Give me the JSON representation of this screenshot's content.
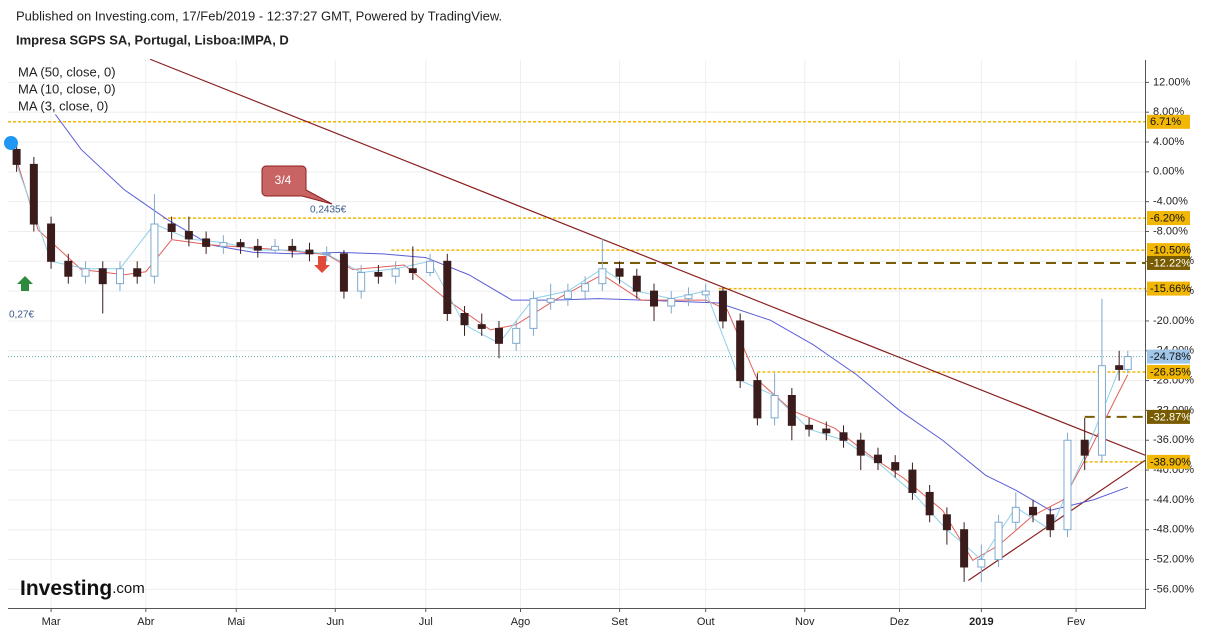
{
  "header": {
    "published": "Published on Investing.com, 17/Feb/2019 - 12:37:27 GMT, Powered by TradingView.",
    "instrument": "Impresa SGPS SA, Portugal, Lisboa:IMPA, D"
  },
  "logo": {
    "name": "Investing",
    "suffix": ".com"
  },
  "chart_data": {
    "type": "candlestick",
    "xlim": [
      -2,
      262
    ],
    "ylim": [
      -58.5,
      15
    ],
    "xticks": [
      {
        "value": 8,
        "label": "Mar"
      },
      {
        "value": 30,
        "label": "Abr"
      },
      {
        "value": 51,
        "label": "Mai"
      },
      {
        "value": 74,
        "label": "Jun"
      },
      {
        "value": 95,
        "label": "Jul"
      },
      {
        "value": 117,
        "label": "Ago"
      },
      {
        "value": 140,
        "label": "Set"
      },
      {
        "value": 160,
        "label": "Out"
      },
      {
        "value": 183,
        "label": "Nov"
      },
      {
        "value": 205,
        "label": "Dez"
      },
      {
        "value": 224,
        "label": "2019"
      },
      {
        "value": 246,
        "label": "Fev"
      }
    ],
    "yticks": [
      {
        "value": 12,
        "label": "12.00%"
      },
      {
        "value": 8,
        "label": "8.00%"
      },
      {
        "value": 4,
        "label": "4.00%"
      },
      {
        "value": 0,
        "label": "0.00%"
      },
      {
        "value": -4,
        "label": "-4.00%"
      },
      {
        "value": -8,
        "label": "-8.00%"
      },
      {
        "value": -12,
        "label": "-12.00%"
      },
      {
        "value": -16,
        "label": "-16.00%"
      },
      {
        "value": -20,
        "label": "-20.00%"
      },
      {
        "value": -24,
        "label": "-24.00%"
      },
      {
        "value": -28,
        "label": "-28.00%"
      },
      {
        "value": -32,
        "label": "-32.00%"
      },
      {
        "value": -36,
        "label": "-36.00%"
      },
      {
        "value": -40,
        "label": "-40.00%"
      },
      {
        "value": -44,
        "label": "-44.00%"
      },
      {
        "value": -48,
        "label": "-48.00%"
      },
      {
        "value": -52,
        "label": "-52.00%"
      },
      {
        "value": -56,
        "label": "-56.00%"
      }
    ],
    "grid": true,
    "up_color": "#7fa9cf",
    "down_color": "#3b1c1c",
    "candles": {
      "x": [
        0,
        4,
        8,
        12,
        16,
        20,
        24,
        28,
        32,
        36,
        40,
        44,
        48,
        52,
        56,
        60,
        64,
        68,
        72,
        76,
        80,
        84,
        88,
        92,
        96,
        100,
        104,
        108,
        112,
        116,
        120,
        124,
        128,
        132,
        136,
        140,
        144,
        148,
        152,
        156,
        160,
        164,
        168,
        172,
        176,
        180,
        184,
        188,
        192,
        196,
        200,
        204,
        208,
        212,
        216,
        220,
        224,
        228,
        232,
        236,
        240,
        244,
        248,
        252,
        256,
        258
      ],
      "open": [
        3,
        1,
        -7,
        -12,
        -14,
        -13,
        -15,
        -13,
        -14,
        -7,
        -8,
        -9,
        -10,
        -9.5,
        -10,
        -10.5,
        -10,
        -10.5,
        -11,
        -11,
        -16,
        -13.5,
        -14,
        -13,
        -13.5,
        -12,
        -19,
        -20.5,
        -21,
        -23,
        -21,
        -17.5,
        -17,
        -16,
        -15,
        -13,
        -14,
        -16,
        -18,
        -17,
        -16.5,
        -16,
        -20,
        -28,
        -33,
        -30,
        -34,
        -34.5,
        -35,
        -36,
        -38,
        -39,
        -40,
        -43,
        -46,
        -48,
        -53,
        -52,
        -47,
        -45,
        -46,
        -48,
        -36,
        -38,
        -26,
        -26.5
      ],
      "high": [
        4,
        2,
        -6,
        -11,
        -12,
        -12,
        -12,
        -12,
        -3,
        -6,
        -6,
        -8,
        -8.5,
        -9,
        -9,
        -9,
        -9,
        -9.5,
        -10,
        -10.5,
        -12.5,
        -12.5,
        -12,
        -10,
        -11,
        -11,
        -18,
        -19,
        -20,
        -20,
        -16,
        -15,
        -15,
        -14,
        -9,
        -12,
        -13,
        -15,
        -16,
        -15.5,
        -15,
        -15.5,
        -19,
        -27,
        -27,
        -29,
        -33,
        -33.5,
        -34,
        -35,
        -37,
        -38,
        -39,
        -42,
        -45,
        -47,
        -50,
        -46,
        -43,
        -44,
        -45,
        -35,
        -33,
        -17,
        -24,
        -24
      ],
      "low": [
        0,
        -8,
        -13,
        -15,
        -15,
        -19,
        -16,
        -15,
        -15,
        -9,
        -10,
        -11,
        -11,
        -11,
        -11.5,
        -11,
        -11.5,
        -12,
        -12,
        -17,
        -17,
        -15,
        -15,
        -14.5,
        -14,
        -20,
        -22,
        -22,
        -25,
        -24,
        -22,
        -18.5,
        -18,
        -17,
        -16,
        -15,
        -17,
        -20,
        -19,
        -18,
        -17.5,
        -21,
        -29,
        -34,
        -34,
        -36,
        -35.5,
        -36,
        -37,
        -40,
        -40,
        -41,
        -44,
        -47,
        -50,
        -55,
        -55,
        -53,
        -48,
        -47,
        -49,
        -49,
        -40,
        -39,
        -28,
        -27
      ],
      "close": [
        1,
        -7,
        -12,
        -14,
        -13,
        -15,
        -13,
        -14,
        -7,
        -8,
        -9,
        -10,
        -9.5,
        -10,
        -10.5,
        -10,
        -10.5,
        -11,
        -11,
        -16,
        -13.5,
        -14,
        -13,
        -13.5,
        -12,
        -19,
        -20.5,
        -21,
        -23,
        -21,
        -17,
        -17,
        -16,
        -15,
        -13,
        -14,
        -16,
        -18,
        -17,
        -16.5,
        -16,
        -20,
        -28,
        -33,
        -30,
        -34,
        -34.5,
        -35,
        -36,
        -38,
        -39,
        -40,
        -43,
        -46,
        -48,
        -53,
        -52,
        -47,
        -45,
        -46,
        -48,
        -36,
        -38,
        -26,
        -26.5,
        -24.78
      ]
    },
    "series": [
      {
        "name": "MA (50, close, 0)",
        "color": "#5b5fd6",
        "x": [
          9,
          15,
          25,
          35,
          45,
          55,
          65,
          75,
          85,
          95,
          105,
          115,
          125,
          135,
          145,
          155,
          163,
          175,
          185,
          195,
          205,
          215,
          225,
          232,
          240,
          250,
          258
        ],
        "values": [
          7.7,
          3,
          -2.4,
          -6.4,
          -9.8,
          -10.8,
          -11,
          -10.8,
          -11,
          -11.5,
          -13.8,
          -17.2,
          -17.2,
          -17,
          -17.2,
          -17.4,
          -17.6,
          -19.9,
          -23.2,
          -27.2,
          -32,
          -36,
          -40.7,
          -42.7,
          -45.4,
          -44,
          -42.3
        ]
      },
      {
        "name": "MA (10, close, 0)",
        "color": "#e0605a",
        "x": [
          0,
          5,
          15,
          25,
          30,
          36,
          45,
          60,
          72,
          78,
          90,
          100,
          110,
          116,
          125,
          136,
          145,
          160,
          165,
          172,
          180,
          190,
          198,
          206,
          215,
          222,
          228,
          236,
          243,
          248,
          255,
          258
        ],
        "values": [
          1.6,
          -7.8,
          -13.1,
          -13.8,
          -13.4,
          -9.1,
          -9.8,
          -10.4,
          -11.1,
          -13.1,
          -12.5,
          -17.2,
          -21.2,
          -20.5,
          -17.2,
          -13.8,
          -17.2,
          -17.2,
          -18.5,
          -27.9,
          -32,
          -34.4,
          -38,
          -41.1,
          -45.4,
          -52.1,
          -50.1,
          -46.1,
          -44,
          -38.7,
          -30.6,
          -27.2
        ]
      },
      {
        "name": "MA (3, close, 0)",
        "color": "#8fd0e8",
        "x": [
          0,
          8,
          16,
          24,
          32,
          40,
          48,
          56,
          64,
          72,
          80,
          88,
          96,
          104,
          112,
          120,
          128,
          136,
          144,
          152,
          160,
          168,
          176,
          184,
          192,
          200,
          208,
          216,
          224,
          232,
          240,
          248,
          256
        ],
        "values": [
          1,
          -12,
          -13,
          -13,
          -7,
          -9,
          -9.5,
          -10.5,
          -10.5,
          -11,
          -13.5,
          -13,
          -12,
          -20.5,
          -23,
          -17,
          -16,
          -13,
          -16,
          -17,
          -16,
          -28,
          -30,
          -34.5,
          -36,
          -39,
          -43,
          -48,
          -52,
          -45,
          -48,
          -38,
          -26.5
        ]
      }
    ],
    "trend_lines": [
      {
        "x": [
          31,
          262
        ],
        "values": [
          15.1,
          -38
        ],
        "color": "#8b1f1f"
      },
      {
        "x": [
          221,
          262
        ],
        "values": [
          -54.8,
          -38.7
        ],
        "color": "#8b1f1f"
      }
    ],
    "levels": [
      {
        "value": 6.71,
        "label": "6.71%",
        "from": -2,
        "color": "#f2b705",
        "style": "dotted"
      },
      {
        "value": -6.2,
        "label": "-6.20%",
        "from": 34,
        "color": "#f2b705",
        "style": "dotted"
      },
      {
        "value": -10.5,
        "label": "-10.50%",
        "from": 87,
        "color": "#f2b705",
        "style": "dotted"
      },
      {
        "value": -12.22,
        "label": "-12.22%",
        "from": 135,
        "color": "#7a5c00",
        "style": "dashed"
      },
      {
        "value": -15.66,
        "label": "-15.66%",
        "from": 163,
        "color": "#f2b705",
        "style": "dotted"
      },
      {
        "value": -24.78,
        "label": "-24.78%",
        "from": -2,
        "color": "#9fc5e8",
        "style": "current"
      },
      {
        "value": -26.85,
        "label": "-26.85%",
        "from": 172,
        "color": "#f2b705",
        "style": "dotted"
      },
      {
        "value": -32.87,
        "label": "-32.87%",
        "from": 248,
        "color": "#7a5c00",
        "style": "dashed"
      },
      {
        "value": -38.9,
        "label": "-38.90%",
        "from": 248,
        "color": "#f2b705",
        "style": "dotted"
      }
    ],
    "annotations": {
      "callout": "3/4",
      "price": "0,2435€",
      "start_price": "0,27€"
    }
  }
}
